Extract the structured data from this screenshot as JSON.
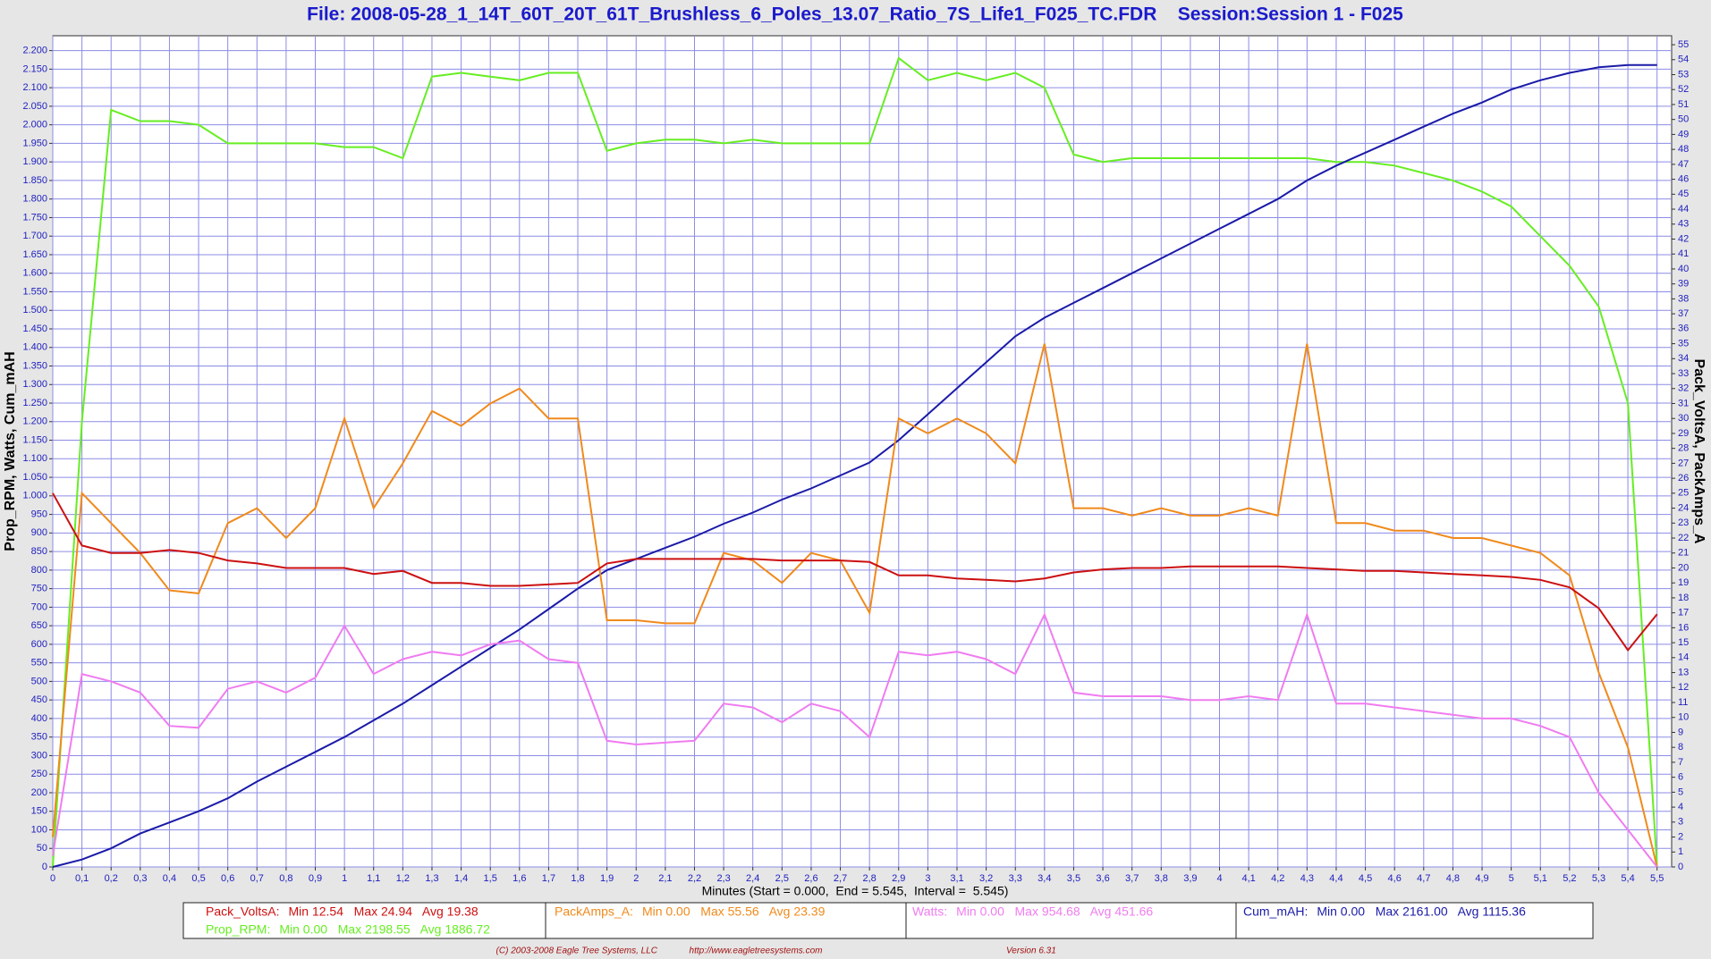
{
  "chart_data": {
    "type": "line",
    "title": "File: 2008-05-28_1_14T_60T_20T_61T_Brushless_6_Poles_13.07_Ratio_7S_Life1_F025_TC.FDR    Session:Session 1 - F025",
    "x_label": "Minutes (Start = 0.000,  End = 5.545,  Interval =  5.545)",
    "y_label": "Prop_RPM, Watts, Cum_mAH",
    "y2_label": "Pack_VoltsA, PackAmps_A",
    "grid": true,
    "xlim": [
      0,
      5.55
    ],
    "ylim": [
      0,
      2240
    ],
    "y2lim": [
      0,
      55.6
    ],
    "xticks": [
      0,
      {
        "value": 0.1,
        "label": "0,1"
      },
      {
        "value": 0.2,
        "label": "0,2"
      },
      {
        "value": 0.3,
        "label": "0,3"
      },
      {
        "value": 0.4,
        "label": "0,4"
      },
      {
        "value": 0.5,
        "label": "0,5"
      },
      {
        "value": 0.6,
        "label": "0,6"
      },
      {
        "value": 0.7,
        "label": "0,7"
      },
      {
        "value": 0.8,
        "label": "0,8"
      },
      {
        "value": 0.9,
        "label": "0,9"
      },
      1,
      {
        "value": 1.1,
        "label": "1,1"
      },
      {
        "value": 1.2,
        "label": "1,2"
      },
      {
        "value": 1.3,
        "label": "1,3"
      },
      {
        "value": 1.4,
        "label": "1,4"
      },
      {
        "value": 1.5,
        "label": "1,5"
      },
      {
        "value": 1.6,
        "label": "1,6"
      },
      {
        "value": 1.7,
        "label": "1,7"
      },
      {
        "value": 1.8,
        "label": "1,8"
      },
      {
        "value": 1.9,
        "label": "1,9"
      },
      2,
      {
        "value": 2.1,
        "label": "2,1"
      },
      {
        "value": 2.2,
        "label": "2,2"
      },
      {
        "value": 2.3,
        "label": "2,3"
      },
      {
        "value": 2.4,
        "label": "2,4"
      },
      {
        "value": 2.5,
        "label": "2,5"
      },
      {
        "value": 2.6,
        "label": "2,6"
      },
      {
        "value": 2.7,
        "label": "2,7"
      },
      {
        "value": 2.8,
        "label": "2,8"
      },
      {
        "value": 2.9,
        "label": "2,9"
      },
      3,
      {
        "value": 3.1,
        "label": "3,1"
      },
      {
        "value": 3.2,
        "label": "3,2"
      },
      {
        "value": 3.3,
        "label": "3,3"
      },
      {
        "value": 3.4,
        "label": "3,4"
      },
      {
        "value": 3.5,
        "label": "3,5"
      },
      {
        "value": 3.6,
        "label": "3,6"
      },
      {
        "value": 3.7,
        "label": "3,7"
      },
      {
        "value": 3.8,
        "label": "3,8"
      },
      {
        "value": 3.9,
        "label": "3,9"
      },
      4,
      {
        "value": 4.1,
        "label": "4,1"
      },
      {
        "value": 4.2,
        "label": "4,2"
      },
      {
        "value": 4.3,
        "label": "4,3"
      },
      {
        "value": 4.4,
        "label": "4,4"
      },
      {
        "value": 4.5,
        "label": "4,5"
      },
      {
        "value": 4.6,
        "label": "4,6"
      },
      {
        "value": 4.7,
        "label": "4,7"
      },
      {
        "value": 4.8,
        "label": "4,8"
      },
      {
        "value": 4.9,
        "label": "4,9"
      },
      5,
      {
        "value": 5.1,
        "label": "5,1"
      },
      {
        "value": 5.2,
        "label": "5,2"
      },
      {
        "value": 5.3,
        "label": "5,3"
      },
      {
        "value": 5.4,
        "label": "5,4"
      },
      {
        "value": 5.5,
        "label": "5,5"
      }
    ],
    "yticks": [
      0,
      50,
      100,
      150,
      200,
      250,
      300,
      350,
      400,
      450,
      500,
      550,
      600,
      650,
      700,
      750,
      800,
      850,
      900,
      950,
      {
        "value": 1000,
        "label": "1.000"
      },
      {
        "value": 1050,
        "label": "1.050"
      },
      {
        "value": 1100,
        "label": "1.100"
      },
      {
        "value": 1150,
        "label": "1.150"
      },
      {
        "value": 1200,
        "label": "1.200"
      },
      {
        "value": 1250,
        "label": "1.250"
      },
      {
        "value": 1300,
        "label": "1.300"
      },
      {
        "value": 1350,
        "label": "1.350"
      },
      {
        "value": 1400,
        "label": "1.400"
      },
      {
        "value": 1450,
        "label": "1.450"
      },
      {
        "value": 1500,
        "label": "1.500"
      },
      {
        "value": 1550,
        "label": "1.550"
      },
      {
        "value": 1600,
        "label": "1.600"
      },
      {
        "value": 1650,
        "label": "1.650"
      },
      {
        "value": 1700,
        "label": "1.700"
      },
      {
        "value": 1750,
        "label": "1.750"
      },
      {
        "value": 1800,
        "label": "1.800"
      },
      {
        "value": 1850,
        "label": "1.850"
      },
      {
        "value": 1900,
        "label": "1.900"
      },
      {
        "value": 1950,
        "label": "1.950"
      },
      {
        "value": 2000,
        "label": "2.000"
      },
      {
        "value": 2050,
        "label": "2.050"
      },
      {
        "value": 2100,
        "label": "2.100"
      },
      {
        "value": 2150,
        "label": "2.150"
      },
      {
        "value": 2200,
        "label": "2.200"
      }
    ],
    "y2ticks": [
      0,
      1,
      2,
      3,
      4,
      5,
      6,
      7,
      8,
      9,
      10,
      11,
      12,
      13,
      14,
      15,
      16,
      17,
      18,
      19,
      20,
      21,
      22,
      23,
      24,
      25,
      26,
      27,
      28,
      29,
      30,
      31,
      32,
      33,
      34,
      35,
      36,
      37,
      38,
      39,
      40,
      41,
      42,
      43,
      44,
      45,
      46,
      47,
      48,
      49,
      50,
      51,
      52,
      53,
      54,
      55
    ],
    "x": [
      0,
      0.1,
      0.2,
      0.3,
      0.4,
      0.5,
      0.6,
      0.7,
      0.8,
      0.9,
      1.0,
      1.1,
      1.2,
      1.3,
      1.4,
      1.5,
      1.6,
      1.7,
      1.8,
      1.9,
      2.0,
      2.1,
      2.2,
      2.3,
      2.4,
      2.5,
      2.6,
      2.7,
      2.8,
      2.9,
      3.0,
      3.1,
      3.2,
      3.3,
      3.4,
      3.5,
      3.6,
      3.7,
      3.8,
      3.9,
      4.0,
      4.1,
      4.2,
      4.3,
      4.4,
      4.5,
      4.6,
      4.7,
      4.8,
      4.9,
      5.0,
      5.1,
      5.2,
      5.3,
      5.4,
      5.5
    ],
    "series": [
      {
        "name": "Prop_RPM:",
        "stats": "Min 0.00   Max 2198.55   Avg 1886.72",
        "color": "#66ee22",
        "values": [
          0,
          1200,
          2040,
          2010,
          2010,
          2000,
          1950,
          1950,
          1950,
          1950,
          1940,
          1940,
          1910,
          2130,
          2140,
          2130,
          2120,
          2140,
          2140,
          1930,
          1950,
          1960,
          1960,
          1950,
          1960,
          1950,
          1950,
          1950,
          1950,
          2180,
          2120,
          2140,
          2120,
          2140,
          2100,
          1920,
          1900,
          1910,
          1910,
          1910,
          1910,
          1910,
          1910,
          1910,
          1900,
          1900,
          1890,
          1870,
          1850,
          1820,
          1780,
          1700,
          1620,
          1510,
          1250,
          0
        ]
      },
      {
        "name": "Cum_mAH:",
        "stats": "Min 0.00   Max 2161.00   Avg 1115.36",
        "color": "#1a1aa8",
        "values": [
          0,
          20,
          50,
          90,
          120,
          150,
          185,
          230,
          270,
          310,
          350,
          395,
          440,
          490,
          540,
          590,
          640,
          695,
          750,
          800,
          830,
          860,
          890,
          925,
          955,
          990,
          1020,
          1055,
          1090,
          1150,
          1220,
          1290,
          1360,
          1430,
          1480,
          1520,
          1560,
          1600,
          1640,
          1680,
          1720,
          1760,
          1800,
          1850,
          1890,
          1925,
          1960,
          1995,
          2030,
          2060,
          2095,
          2120,
          2140,
          2155,
          2161,
          2161
        ]
      },
      {
        "name": "PackAmps_A:",
        "stats": "Min 0.00   Max 55.56   Avg 23.39",
        "color": "#f08a1c",
        "axis": "y2",
        "values": [
          2,
          25,
          23,
          21,
          18.5,
          18.3,
          23,
          24,
          22,
          24,
          30,
          24,
          27,
          30.5,
          29.5,
          31,
          32,
          30,
          30,
          16.5,
          16.5,
          16.3,
          16.3,
          21,
          20.5,
          19,
          21,
          20.5,
          17,
          30,
          29,
          30,
          29,
          27,
          35,
          24,
          24,
          23.5,
          24,
          23.5,
          23.5,
          24,
          23.5,
          35,
          23,
          23,
          22.5,
          22.5,
          22,
          22,
          21.5,
          21,
          19.5,
          13,
          8,
          0
        ]
      },
      {
        "name": "Pack_VoltsA:",
        "stats": "Min 12.54   Max 24.94   Avg 19.38",
        "color": "#cc1010",
        "axis": "y2",
        "values": [
          25,
          21.5,
          21,
          21,
          21.2,
          21,
          20.5,
          20.3,
          20,
          20,
          20,
          19.6,
          19.8,
          19,
          19,
          18.8,
          18.8,
          18.9,
          19,
          20.3,
          20.6,
          20.6,
          20.6,
          20.6,
          20.6,
          20.5,
          20.5,
          20.5,
          20.4,
          19.5,
          19.5,
          19.3,
          19.2,
          19.1,
          19.3,
          19.7,
          19.9,
          20,
          20,
          20.1,
          20.1,
          20.1,
          20.1,
          20,
          19.9,
          19.8,
          19.8,
          19.7,
          19.6,
          19.5,
          19.4,
          19.2,
          18.7,
          17.3,
          14.5,
          16.9
        ]
      },
      {
        "name": "Watts:",
        "stats": "Min 0.00   Max 954.68   Avg 451.66",
        "color": "#f07cf0",
        "values": [
          30,
          520,
          500,
          470,
          380,
          375,
          480,
          500,
          470,
          510,
          650,
          520,
          560,
          580,
          570,
          600,
          610,
          560,
          550,
          340,
          330,
          335,
          340,
          440,
          430,
          390,
          440,
          420,
          350,
          580,
          570,
          580,
          560,
          520,
          680,
          470,
          460,
          460,
          460,
          450,
          450,
          460,
          450,
          680,
          440,
          440,
          430,
          420,
          410,
          400,
          400,
          380,
          350,
          200,
          100,
          0
        ]
      }
    ]
  },
  "footer": {
    "copyright": "(C) 2003-2008 Eagle Tree Systems, LLC",
    "url": "http://www.eagletreesystems.com",
    "version": "Version 6.31"
  }
}
